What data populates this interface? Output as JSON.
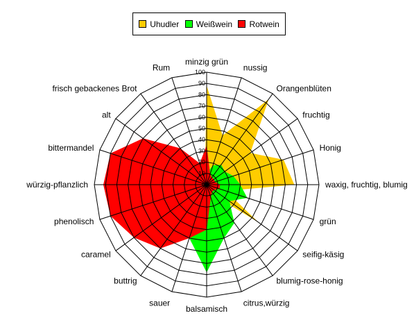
{
  "chart_data": {
    "type": "radar",
    "title": "",
    "categories": [
      "minzig grün",
      "nussig",
      "Orangenblüten",
      "fruchtig",
      "Honig",
      "waxig, fruchtig, blumig",
      "grün",
      "seifig-käsig",
      "blumig-rose-honig",
      "citrus,würzig",
      "balsamisch",
      "sauer",
      "buttrig",
      "caramel",
      "phenolisch",
      "würzig-pflanzlich",
      "bittermandel",
      "alt",
      "frisch gebackenes Brot",
      "Rum"
    ],
    "rlim": [
      0,
      100
    ],
    "r_ticks": [
      "0",
      "10",
      "20",
      "30",
      "40",
      "50",
      "60",
      "70",
      "80",
      "90",
      "100"
    ],
    "grid": true,
    "legend_position": "top-center",
    "series": [
      {
        "name": "Uhudler",
        "color": "#FFCC00",
        "values": [
          88,
          46,
          94,
          48,
          72,
          78,
          18,
          57,
          12,
          12,
          10,
          10,
          10,
          10,
          10,
          10,
          10,
          12,
          5,
          5
        ]
      },
      {
        "name": "Weißwein",
        "color": "#00FF00",
        "values": [
          10,
          18,
          22,
          20,
          25,
          30,
          38,
          25,
          42,
          50,
          78,
          50,
          10,
          5,
          5,
          5,
          5,
          5,
          5,
          5
        ]
      },
      {
        "name": "Rotwein",
        "color": "#FF0000",
        "values": [
          35,
          10,
          8,
          8,
          8,
          12,
          12,
          8,
          8,
          12,
          40,
          50,
          70,
          80,
          90,
          92,
          90,
          70,
          40,
          20
        ]
      }
    ]
  }
}
